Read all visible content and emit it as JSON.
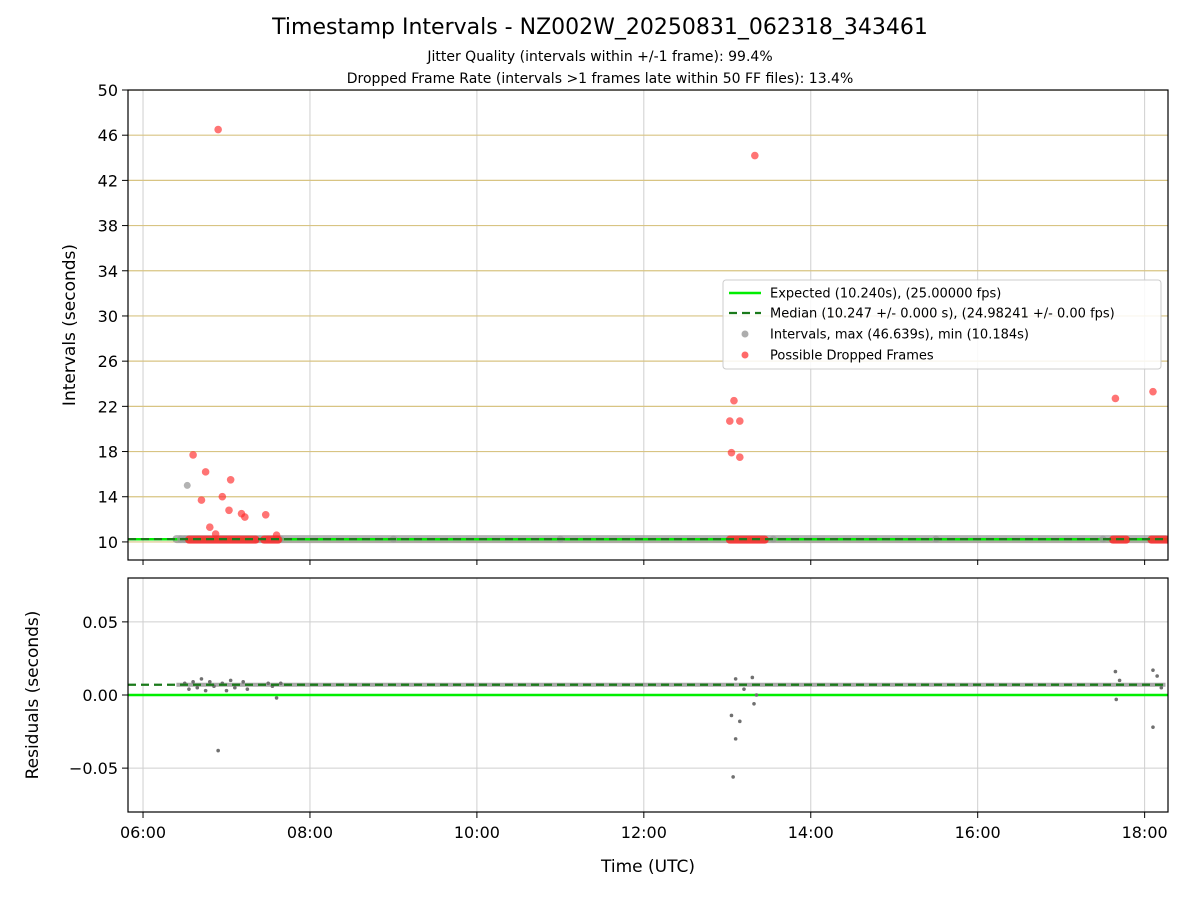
{
  "colors": {
    "expected": "#00ee00",
    "median": "#1a7a1a",
    "interval": "#999999",
    "dropped": "#ff2a2a",
    "residual": "#707070",
    "minor_grid": "#d8c483",
    "major_grid": "#cfcfcf"
  },
  "chart_data": [
    {
      "type": "scatter",
      "title": "Timestamp Intervals - NZ002W_20250831_062318_343461",
      "subtitle_lines": [
        "Jitter Quality (intervals within +/-1 frame): 99.4%",
        "Dropped Frame Rate (intervals >1 frames late within 50 FF files): 13.4%"
      ],
      "xlabel": "",
      "ylabel": "Intervals (seconds)",
      "x_unit": "hours (UTC)",
      "xlim": [
        5.82,
        18.28
      ],
      "ylim": [
        8.4,
        50
      ],
      "yticks": [
        "10",
        "14",
        "18",
        "22",
        "26",
        "30",
        "34",
        "38",
        "42",
        "46",
        "50"
      ],
      "grid": true,
      "legend_position": "center-right",
      "legend": [
        "Expected (10.240s), (25.00000 fps)",
        "Median (10.247 +/- 0.000 s), (24.98241 +/- 0.00 fps)",
        "Intervals, max (46.639s), min (10.184s)",
        "Possible Dropped Frames"
      ],
      "series": [
        {
          "name": "Expected (10.240s), (25.00000 fps)",
          "kind": "hline",
          "y": 10.24
        },
        {
          "name": "Median (10.247 +/- 0.000 s), (24.98241 +/- 0.00 fps)",
          "kind": "hline",
          "y": 10.247
        },
        {
          "name": "Intervals, max (46.639s), min (10.184s)",
          "kind": "scatter",
          "points": [
            [
              6.45,
              10.25
            ],
            [
              6.5,
              10.24
            ],
            [
              6.53,
              15.0
            ],
            [
              7.35,
              10.24
            ],
            [
              7.4,
              10.25
            ],
            [
              7.5,
              10.25
            ],
            [
              7.55,
              10.24
            ],
            [
              7.65,
              10.25
            ],
            [
              9.0,
              10.25
            ],
            [
              11.0,
              10.25
            ],
            [
              13.55,
              10.25
            ],
            [
              15.5,
              10.25
            ],
            [
              17.5,
              10.25
            ]
          ],
          "segments": [
            [
              6.4,
              18.25,
              10.25
            ]
          ]
        },
        {
          "name": "Possible Dropped Frames",
          "kind": "scatter",
          "points": [
            [
              6.6,
              17.7
            ],
            [
              6.7,
              13.7
            ],
            [
              6.75,
              16.2
            ],
            [
              6.8,
              11.3
            ],
            [
              6.87,
              10.7
            ],
            [
              6.9,
              46.5
            ],
            [
              6.95,
              14.0
            ],
            [
              7.03,
              12.8
            ],
            [
              7.05,
              15.5
            ],
            [
              7.18,
              12.5
            ],
            [
              7.22,
              12.2
            ],
            [
              7.47,
              12.4
            ],
            [
              7.6,
              10.6
            ],
            [
              13.03,
              20.7
            ],
            [
              13.05,
              17.9
            ],
            [
              13.08,
              22.5
            ],
            [
              13.15,
              17.5
            ],
            [
              13.15,
              20.7
            ],
            [
              13.33,
              44.2
            ],
            [
              17.65,
              22.7
            ],
            [
              18.1,
              23.3
            ]
          ],
          "segments": [
            [
              6.55,
              7.35,
              10.2
            ],
            [
              7.45,
              7.62,
              10.2
            ],
            [
              13.03,
              13.45,
              10.2
            ],
            [
              17.62,
              17.78,
              10.2
            ],
            [
              18.08,
              18.28,
              10.2
            ]
          ]
        }
      ]
    },
    {
      "type": "scatter",
      "xlabel": "Time (UTC)",
      "ylabel": "Residuals (seconds)",
      "x_unit": "hours (UTC)",
      "xlim": [
        5.82,
        18.28
      ],
      "ylim": [
        -0.08,
        0.08
      ],
      "yticks": [
        "−0.05",
        "0.00",
        "0.05"
      ],
      "xticks": [
        "06:00",
        "08:00",
        "10:00",
        "12:00",
        "14:00",
        "16:00",
        "18:00"
      ],
      "grid": true,
      "series": [
        {
          "name": "",
          "kind": "hline",
          "y": 0.0
        },
        {
          "name": "",
          "kind": "hline",
          "y": 0.007
        },
        {
          "name": "",
          "kind": "scatter",
          "points": [
            [
              6.5,
              0.008
            ],
            [
              6.55,
              0.004
            ],
            [
              6.6,
              0.009
            ],
            [
              6.65,
              0.005
            ],
            [
              6.7,
              0.011
            ],
            [
              6.75,
              0.003
            ],
            [
              6.8,
              0.009
            ],
            [
              6.85,
              0.006
            ],
            [
              6.9,
              -0.038
            ],
            [
              6.95,
              0.008
            ],
            [
              7.0,
              0.003
            ],
            [
              7.05,
              0.01
            ],
            [
              7.1,
              0.005
            ],
            [
              7.2,
              0.009
            ],
            [
              7.25,
              0.004
            ],
            [
              7.5,
              0.008
            ],
            [
              7.55,
              0.006
            ],
            [
              7.6,
              -0.002
            ],
            [
              7.65,
              0.008
            ],
            [
              13.05,
              -0.014
            ],
            [
              13.07,
              -0.056
            ],
            [
              13.1,
              -0.03
            ],
            [
              13.15,
              -0.018
            ],
            [
              13.1,
              0.011
            ],
            [
              13.2,
              0.004
            ],
            [
              13.3,
              0.012
            ],
            [
              13.32,
              -0.006
            ],
            [
              13.35,
              0.0
            ],
            [
              17.65,
              0.016
            ],
            [
              17.66,
              -0.003
            ],
            [
              17.7,
              0.01
            ],
            [
              18.1,
              0.017
            ],
            [
              18.1,
              -0.022
            ],
            [
              18.15,
              0.013
            ],
            [
              18.2,
              0.005
            ]
          ],
          "segments": [
            [
              6.4,
              18.25,
              0.007
            ]
          ]
        }
      ]
    }
  ]
}
